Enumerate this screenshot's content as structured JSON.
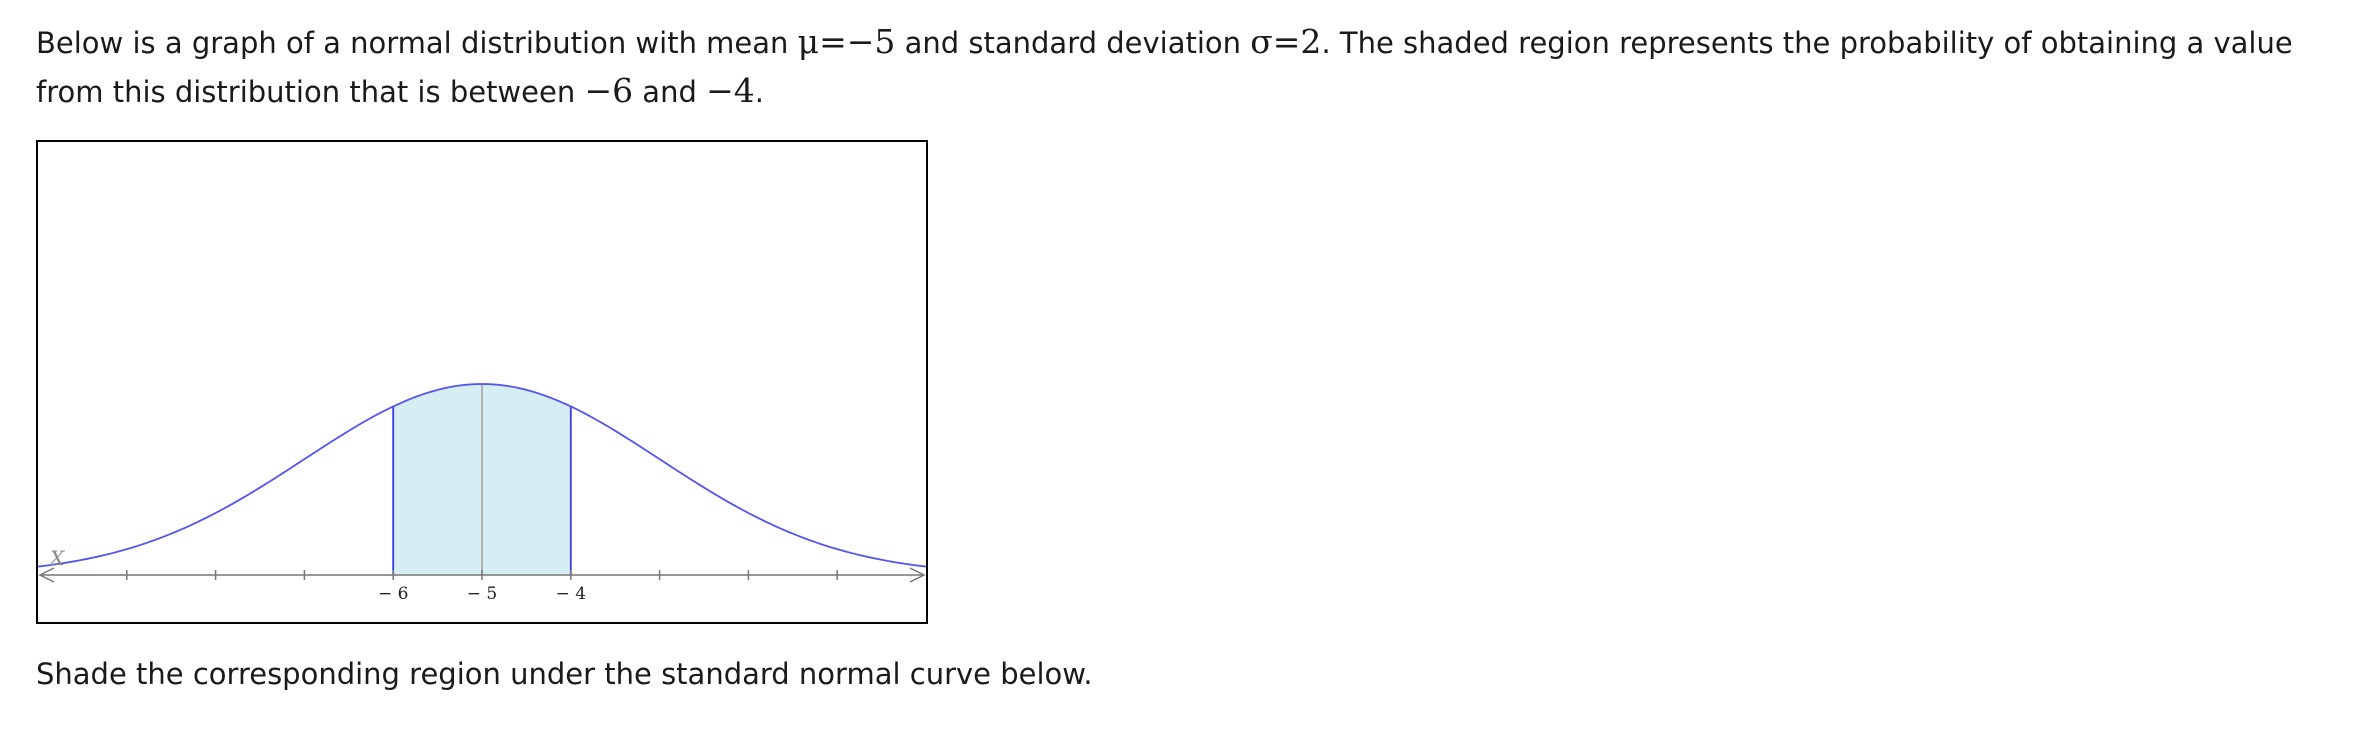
{
  "intro": {
    "part1": "Below is a graph of a normal distribution with mean ",
    "mean_expr": "μ=−5",
    "part2": " and standard deviation ",
    "sd_expr": "σ=2",
    "part3": ". The shaded region represents the probability of obtaining a value from this distribution that is between ",
    "lower_expr": "−6",
    "part4": " and ",
    "upper_expr": "−4",
    "part5": "."
  },
  "instruction": "Shade the corresponding region under the standard normal curve below.",
  "chart_data": {
    "type": "area",
    "distribution": "normal",
    "mean": -5,
    "sd": 2,
    "xlim": [
      -10,
      0
    ],
    "axis_variable_label": "X",
    "shaded_interval": [
      -6,
      -4
    ],
    "tick_values": [
      -9,
      -8,
      -7,
      -6,
      -5,
      -4,
      -3,
      -2,
      -1
    ],
    "tick_labels": [
      {
        "value": -6,
        "label": "− 6"
      },
      {
        "value": -5,
        "label": "− 5"
      },
      {
        "value": -4,
        "label": "− 4"
      }
    ],
    "grid": false,
    "colors": {
      "curve": "#5555ee",
      "shade": "#d6eef3",
      "boundary": "#3a3ae8",
      "mean_line": "#a0a0a0",
      "axis": "#777777"
    }
  }
}
